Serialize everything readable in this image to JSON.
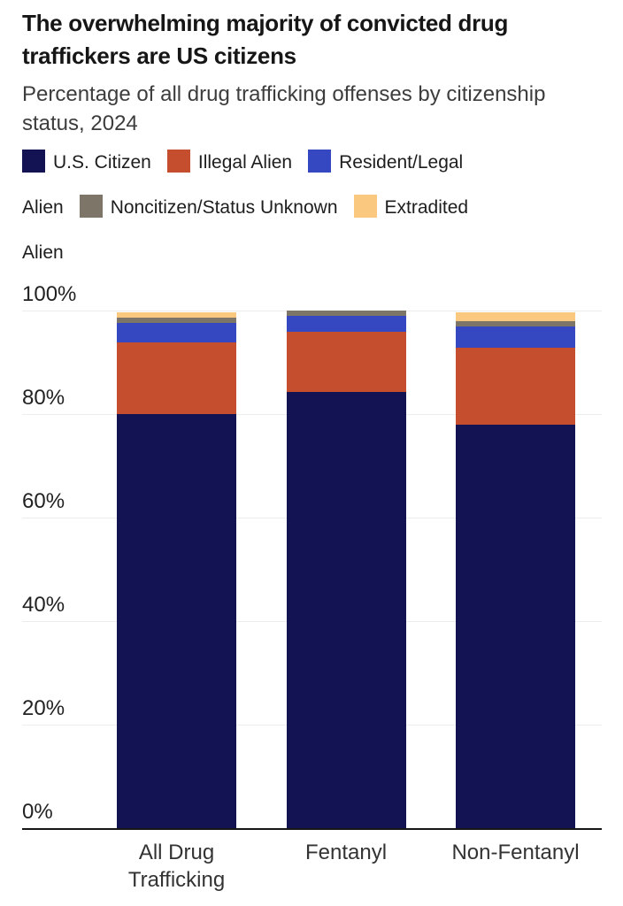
{
  "header": {
    "title": "The overwhelming majority of convicted drug traffickers are US citizens",
    "subtitle": "Percentage of all drug trafficking offenses by citizenship status, 2024"
  },
  "chart_data": {
    "type": "bar",
    "stacked": true,
    "unit": "percent",
    "title": "The overwhelming majority of convicted drug traffickers are US citizens",
    "subtitle": "Percentage of all drug trafficking offenses by citizenship status, 2024",
    "categories": [
      "All Drug Trafficking",
      "Fentanyl",
      "Non-Fentanyl"
    ],
    "series": [
      {
        "name": "U.S. Citizen",
        "color": "#131353",
        "values": [
          80.1,
          84.3,
          78.1
        ]
      },
      {
        "name": "Illegal Alien",
        "color": "#c44e2d",
        "values": [
          13.8,
          11.7,
          14.9
        ]
      },
      {
        "name": "Resident/Legal Alien",
        "color": "#3547c1",
        "values": [
          3.8,
          3.1,
          4.0
        ]
      },
      {
        "name": "Noncitizen/Status Unknown",
        "color": "#7d7568",
        "values": [
          1.0,
          0.9,
          1.1
        ]
      },
      {
        "name": "Extradited Alien",
        "color": "#fac87e",
        "values": [
          1.1,
          0,
          1.7
        ]
      }
    ],
    "yticks": [
      {
        "value": 0,
        "label": "0%"
      },
      {
        "value": 20,
        "label": "20%"
      },
      {
        "value": 40,
        "label": "40%"
      },
      {
        "value": 60,
        "label": "60%"
      },
      {
        "value": 80,
        "label": "80%"
      },
      {
        "value": 100,
        "label": "100%"
      }
    ],
    "ylim": [
      0,
      100
    ],
    "grid": true,
    "legend_position": "top"
  }
}
